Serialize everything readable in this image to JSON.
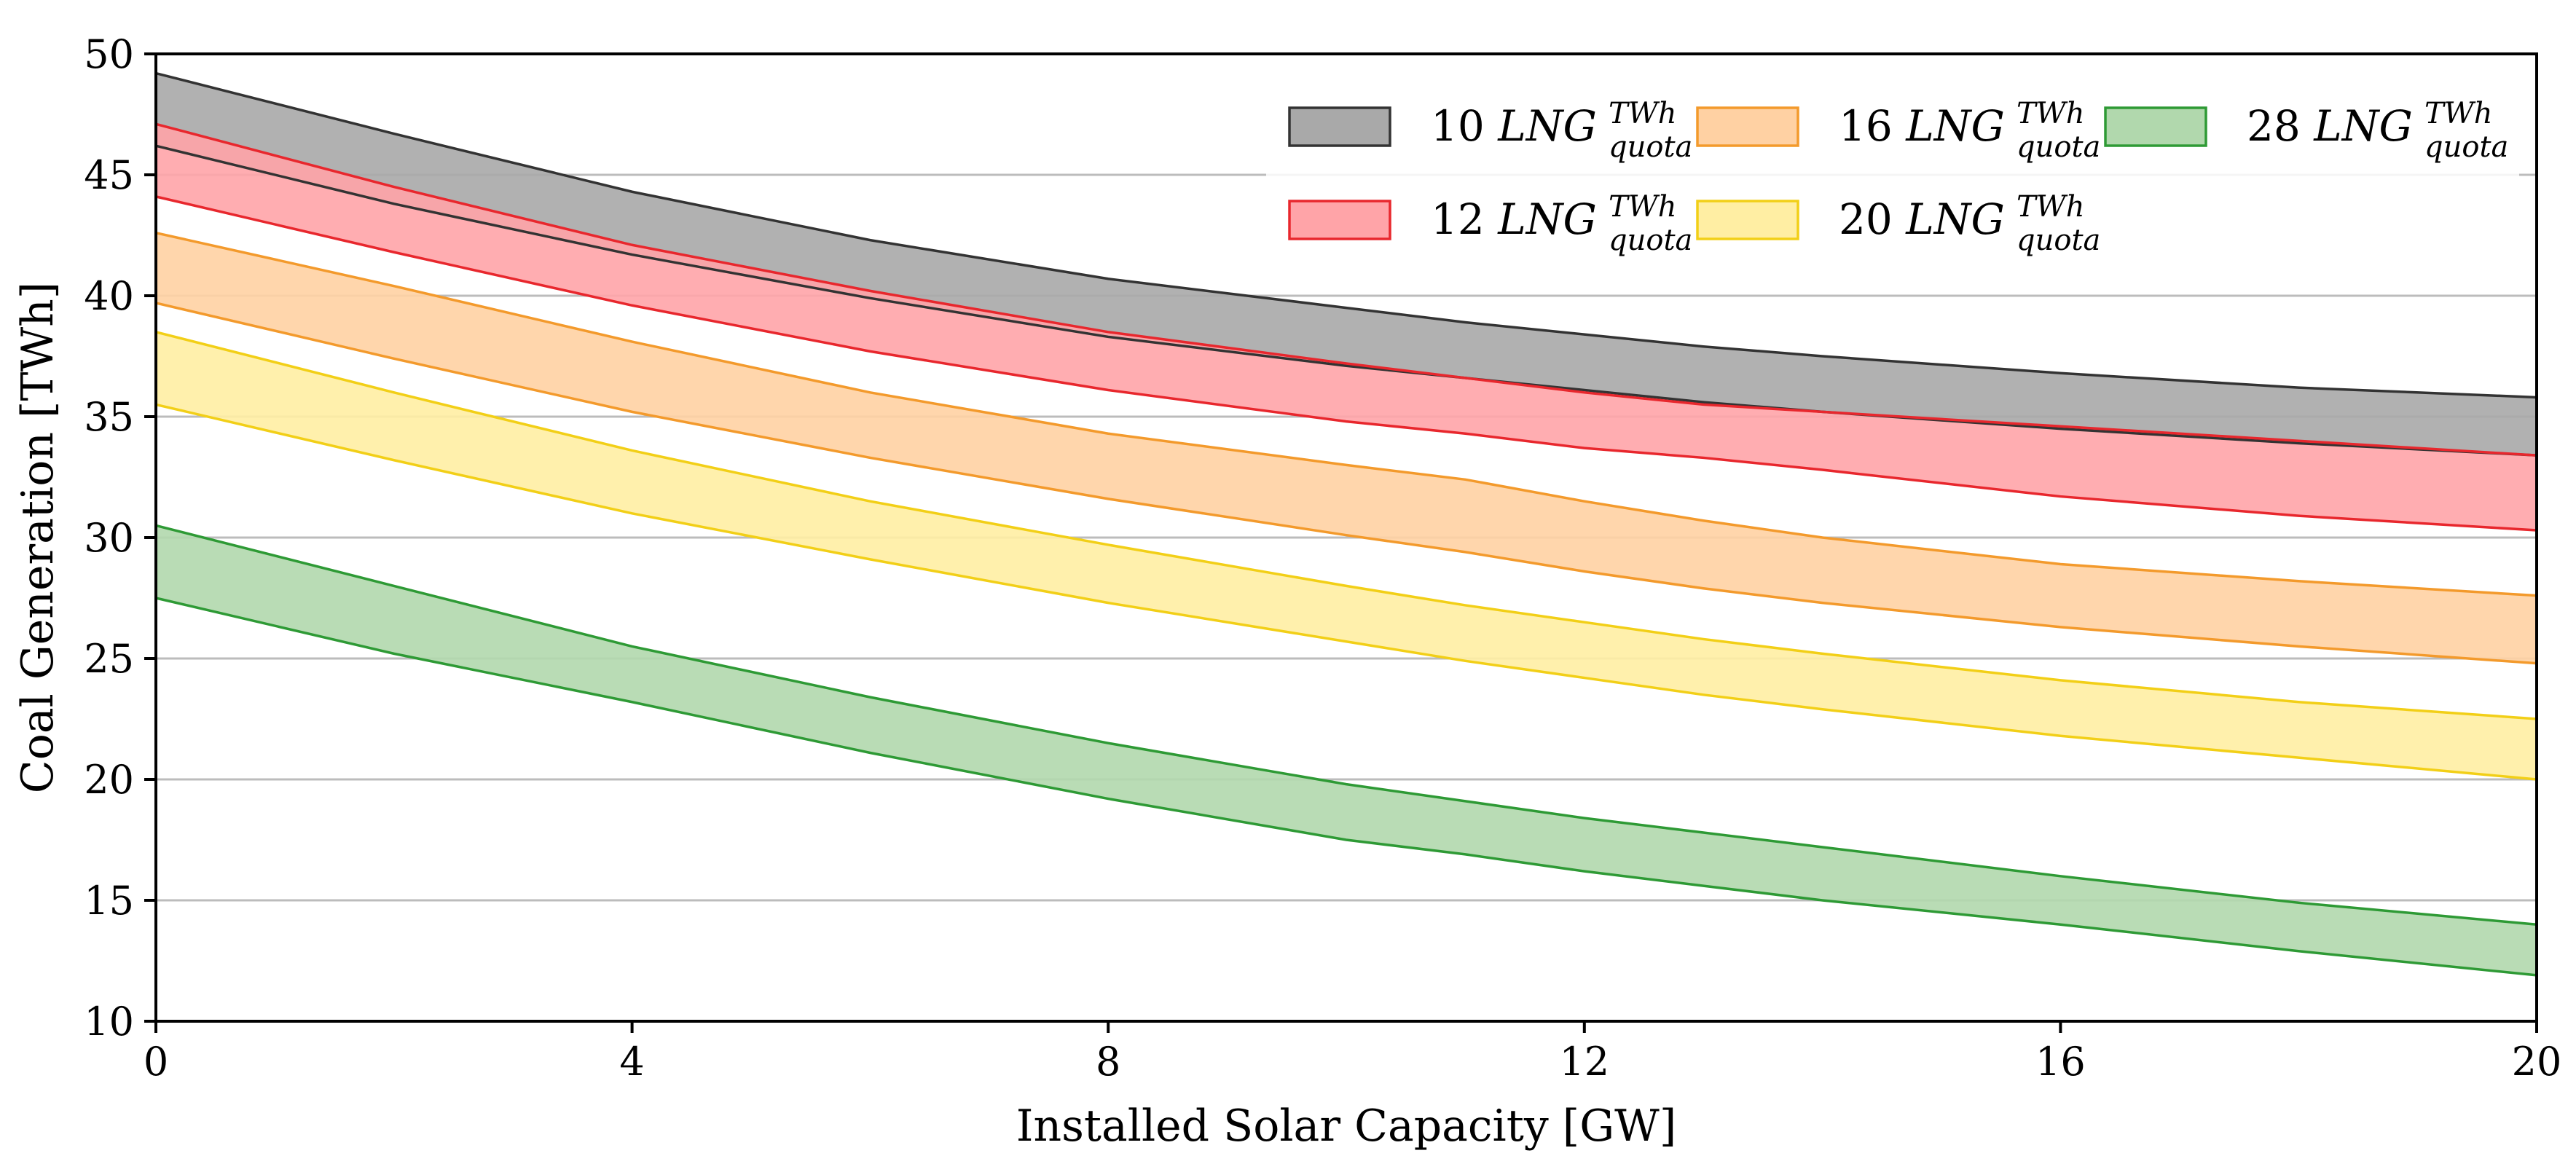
{
  "chart_data": {
    "type": "area",
    "title": "",
    "xlabel": "Installed Solar Capacity [GW]",
    "ylabel": "Coal Generation [TWh]",
    "xlim": [
      0,
      20
    ],
    "ylim": [
      10,
      50
    ],
    "xticks": [
      0,
      4,
      8,
      12,
      16,
      20
    ],
    "yticks": [
      10,
      15,
      20,
      25,
      30,
      35,
      40,
      45,
      50
    ],
    "grid": "horizontal",
    "legend_position": "top-right",
    "legend_suffix": "LNG",
    "legend_superscript": "TWh",
    "legend_subscript": "quota",
    "x": [
      0,
      2,
      4,
      6,
      8,
      10,
      11,
      12,
      13,
      14,
      16,
      18,
      20
    ],
    "series": [
      {
        "name": "10",
        "fill": "#a9a9a9",
        "line": "#333333",
        "upper": [
          49.2,
          46.7,
          44.3,
          42.3,
          40.7,
          39.5,
          38.9,
          38.4,
          37.9,
          37.5,
          36.8,
          36.2,
          35.8
        ],
        "lower": [
          46.2,
          43.8,
          41.7,
          39.9,
          38.3,
          37.1,
          36.6,
          36.1,
          35.6,
          35.2,
          34.5,
          33.9,
          33.4
        ]
      },
      {
        "name": "12",
        "fill": "#ffa4a8",
        "line": "#e8272d",
        "upper": [
          47.1,
          44.5,
          42.1,
          40.2,
          38.5,
          37.2,
          36.6,
          36.0,
          35.5,
          35.2,
          34.6,
          34.0,
          33.4
        ],
        "lower": [
          44.1,
          41.8,
          39.6,
          37.7,
          36.1,
          34.8,
          34.3,
          33.7,
          33.3,
          32.8,
          31.7,
          30.9,
          30.3
        ]
      },
      {
        "name": "16",
        "fill": "#ffd1a3",
        "line": "#f39a2c",
        "upper": [
          42.6,
          40.4,
          38.1,
          36.0,
          34.3,
          33.0,
          32.4,
          31.5,
          30.7,
          30.0,
          28.9,
          28.2,
          27.6
        ],
        "lower": [
          39.7,
          37.4,
          35.2,
          33.3,
          31.6,
          30.1,
          29.4,
          28.6,
          27.9,
          27.3,
          26.3,
          25.5,
          24.8
        ]
      },
      {
        "name": "20",
        "fill": "#ffeea3",
        "line": "#f2cf17",
        "upper": [
          38.5,
          36.0,
          33.6,
          31.5,
          29.7,
          28.0,
          27.2,
          26.5,
          25.8,
          25.2,
          24.1,
          23.2,
          22.5
        ],
        "lower": [
          35.5,
          33.2,
          31.0,
          29.1,
          27.3,
          25.7,
          24.9,
          24.2,
          23.5,
          22.9,
          21.8,
          20.9,
          20.0
        ]
      },
      {
        "name": "28",
        "fill": "#b1d8ad",
        "line": "#2e9a35",
        "upper": [
          30.5,
          28.0,
          25.5,
          23.4,
          21.5,
          19.8,
          19.1,
          18.4,
          17.8,
          17.2,
          16.0,
          14.9,
          14.0
        ],
        "lower": [
          27.5,
          25.2,
          23.2,
          21.1,
          19.2,
          17.5,
          16.9,
          16.2,
          15.6,
          15.0,
          14.0,
          12.9,
          11.9
        ]
      }
    ]
  }
}
